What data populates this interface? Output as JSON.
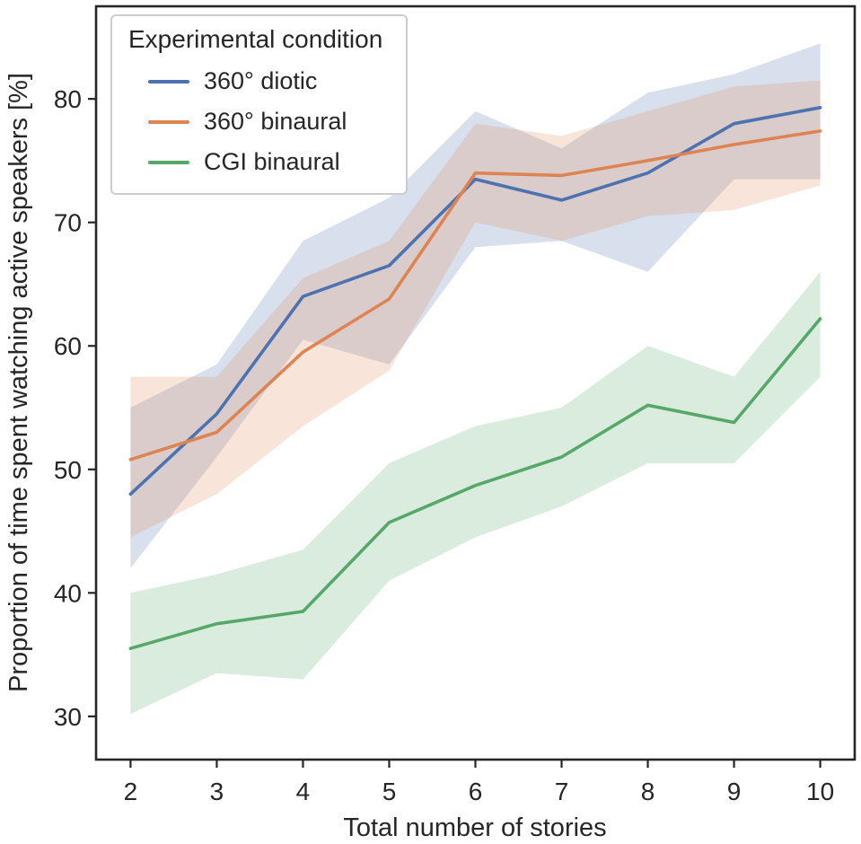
{
  "chart_data": {
    "type": "line",
    "title": "",
    "xlabel": "Total number of stories",
    "ylabel": "Proportion of time spent watching active speakers [%]",
    "x": [
      2,
      3,
      4,
      5,
      6,
      7,
      8,
      9,
      10
    ],
    "xlim": [
      1.6,
      10.4
    ],
    "ylim": [
      26.5,
      87.5
    ],
    "yticks": [
      30,
      40,
      50,
      60,
      70,
      80
    ],
    "grid": false,
    "band_opacity": 0.22,
    "axis_color": "#262626",
    "legend": {
      "title": "Experimental condition",
      "position": "upper-left"
    },
    "series": [
      {
        "name": "360° diotic",
        "color": "#4C72B0",
        "values": [
          48.0,
          54.5,
          64.0,
          66.5,
          73.5,
          71.8,
          74.0,
          78.0,
          79.3
        ],
        "band_lower": [
          42.0,
          51.0,
          60.5,
          58.5,
          68.0,
          68.5,
          66.0,
          73.5,
          73.5
        ],
        "band_upper": [
          55.0,
          58.5,
          68.5,
          72.0,
          79.0,
          76.0,
          80.5,
          82.0,
          84.5
        ]
      },
      {
        "name": "360° binaural",
        "color": "#DD8452",
        "values": [
          50.8,
          53.0,
          59.5,
          63.8,
          74.0,
          73.8,
          75.0,
          76.3,
          77.4
        ],
        "band_lower": [
          44.5,
          48.0,
          53.5,
          58.0,
          70.0,
          68.5,
          70.5,
          71.0,
          73.0
        ],
        "band_upper": [
          57.5,
          57.5,
          65.5,
          68.5,
          78.0,
          77.0,
          79.0,
          81.0,
          81.5
        ]
      },
      {
        "name": "CGI binaural",
        "color": "#55A868",
        "values": [
          35.5,
          37.5,
          38.5,
          45.7,
          48.7,
          51.0,
          55.2,
          53.8,
          62.2
        ],
        "band_lower": [
          30.2,
          33.5,
          33.0,
          41.0,
          44.5,
          47.0,
          50.5,
          50.5,
          57.5
        ],
        "band_upper": [
          40.0,
          41.5,
          43.5,
          50.5,
          53.5,
          55.0,
          60.0,
          57.5,
          66.0
        ]
      }
    ]
  }
}
